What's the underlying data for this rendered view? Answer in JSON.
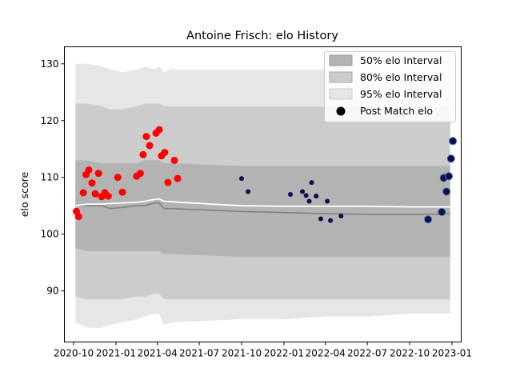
{
  "chart_data": {
    "type": "scatter",
    "title": "Antoine Frisch: elo History",
    "ylabel": "elo score",
    "xlabel": "",
    "ylim": [
      81,
      133
    ],
    "xlim": [
      "2020-09-11",
      "2023-01-21"
    ],
    "x_ticks": [
      "2020-10",
      "2021-01",
      "2021-04",
      "2021-07",
      "2021-10",
      "2022-01",
      "2022-04",
      "2022-07",
      "2022-10",
      "2023-01"
    ],
    "y_ticks": [
      90,
      100,
      110,
      120,
      130
    ],
    "grid": false,
    "legend_position": "top-right",
    "legend": [
      {
        "label": "50% elo Interval",
        "color": "#b3b3b3"
      },
      {
        "label": "80% elo Interval",
        "color": "#cccccc"
      },
      {
        "label": "95% elo Interval",
        "color": "#e6e6e6"
      },
      {
        "label": "Post Match elo",
        "color": "#000000"
      }
    ],
    "bands": {
      "x": [
        "2020-10-05",
        "2020-11-01",
        "2020-12-01",
        "2020-12-20",
        "2021-01-15",
        "2021-02-15",
        "2021-03-05",
        "2021-03-25",
        "2021-04-05",
        "2021-04-15",
        "2021-05-01",
        "2021-10-01",
        "2022-01-01",
        "2022-04-01",
        "2022-07-01",
        "2022-10-01",
        "2022-11-10",
        "2022-12-06",
        "2022-12-18",
        "2022-12-28"
      ],
      "p95_high": [
        130,
        130,
        129.5,
        129,
        128.5,
        129,
        129.5,
        129,
        129.5,
        128.5,
        129,
        129,
        129,
        129,
        129,
        129,
        129,
        129,
        129,
        129
      ],
      "p80_high": [
        123,
        123,
        122.5,
        122,
        122,
        122.5,
        123,
        123,
        123,
        122.5,
        122.5,
        122.5,
        122.5,
        122.5,
        122.5,
        122.5,
        122.5,
        122.5,
        122.5,
        122.5
      ],
      "p50_high": [
        113,
        113,
        112.5,
        112.5,
        112.5,
        112.5,
        113,
        113,
        113,
        112.5,
        112.5,
        112,
        112,
        112,
        112,
        112,
        112,
        112,
        112,
        112
      ],
      "p50_low": [
        97.5,
        97,
        97,
        97,
        97,
        97,
        97,
        97,
        97,
        96.5,
        96.5,
        96,
        96,
        96,
        96,
        96,
        96,
        96,
        96,
        96
      ],
      "p80_low": [
        89,
        88.5,
        88.5,
        88.5,
        88.5,
        89,
        89,
        89.5,
        89.5,
        88.5,
        88.5,
        88.5,
        88.5,
        88.5,
        88.5,
        88.5,
        88.5,
        88.5,
        88.5,
        88.5
      ],
      "p95_low": [
        84.5,
        83.5,
        83.5,
        84,
        84.5,
        85,
        85.5,
        86,
        86,
        84,
        84.5,
        85,
        85,
        85.5,
        85.5,
        86,
        86,
        86,
        86,
        86
      ],
      "mean": [
        105,
        105,
        105,
        104.5,
        104.7,
        105,
        105,
        105.5,
        105.5,
        104.5,
        104.5,
        104,
        103.8,
        103.6,
        103.5,
        103.5,
        103.5,
        103.5,
        103.6,
        103.6
      ],
      "white_line": [
        105,
        105.3,
        105.3,
        105.4,
        105.5,
        105.6,
        105.8,
        106.1,
        106.2,
        105.8,
        105.7,
        105,
        104.9,
        104.9,
        104.9,
        104.8,
        104.8,
        104.8,
        104.8,
        104.8
      ]
    },
    "series": [
      {
        "name": "Post Match elo",
        "color": "#ff0000",
        "marker_size": "large",
        "points": [
          [
            "2020-10-07",
            104.0
          ],
          [
            "2020-10-12",
            103.1
          ],
          [
            "2020-10-22",
            107.3
          ],
          [
            "2020-10-28",
            110.5
          ],
          [
            "2020-11-03",
            111.3
          ],
          [
            "2020-11-10",
            109.0
          ],
          [
            "2020-11-17",
            107.1
          ],
          [
            "2020-11-24",
            110.7
          ],
          [
            "2020-12-01",
            106.6
          ],
          [
            "2020-12-08",
            107.3
          ],
          [
            "2020-12-15",
            106.7
          ],
          [
            "2021-01-05",
            110.0
          ],
          [
            "2021-01-15",
            107.4
          ],
          [
            "2021-02-15",
            110.2
          ],
          [
            "2021-02-23",
            110.7
          ],
          [
            "2021-03-01",
            114.0
          ],
          [
            "2021-03-08",
            117.2
          ],
          [
            "2021-03-15",
            115.6
          ],
          [
            "2021-03-29",
            117.8
          ],
          [
            "2021-04-05",
            118.4
          ],
          [
            "2021-04-10",
            113.8
          ],
          [
            "2021-04-17",
            114.4
          ],
          [
            "2021-04-24",
            109.1
          ],
          [
            "2021-05-08",
            113.0
          ],
          [
            "2021-05-15",
            109.8
          ]
        ]
      },
      {
        "name": "",
        "color": "#0d0d4f",
        "marker_size": "small",
        "points": [
          [
            "2021-10-01",
            109.8
          ],
          [
            "2021-10-15",
            107.5
          ],
          [
            "2022-01-15",
            107.0
          ],
          [
            "2022-02-10",
            107.5
          ],
          [
            "2022-02-18",
            106.8
          ],
          [
            "2022-02-25",
            105.8
          ],
          [
            "2022-03-02",
            109.1
          ],
          [
            "2022-03-12",
            106.7
          ],
          [
            "2022-03-22",
            102.7
          ],
          [
            "2022-04-05",
            105.8
          ],
          [
            "2022-04-12",
            102.4
          ],
          [
            "2022-05-05",
            103.2
          ]
        ]
      },
      {
        "name": "",
        "color": "#0d0d4f",
        "marker_size": "large",
        "points": [
          [
            "2022-11-10",
            102.6
          ],
          [
            "2022-12-10",
            103.9
          ],
          [
            "2022-12-14",
            109.9
          ],
          [
            "2022-12-20",
            107.5
          ],
          [
            "2022-12-25",
            110.2
          ],
          [
            "2022-12-30",
            113.3
          ],
          [
            "2023-01-03",
            116.4
          ]
        ]
      }
    ]
  }
}
